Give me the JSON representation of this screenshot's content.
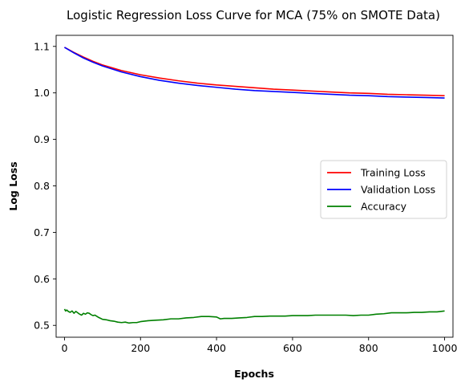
{
  "chart_data": {
    "type": "line",
    "title": "Logistic Regression Loss Curve for MCA (75% on SMOTE Data)",
    "xlabel": "Epochs",
    "ylabel": "Log Loss",
    "xlim": [
      -22,
      1022
    ],
    "ylim": [
      0.4745,
      1.1238
    ],
    "xticks": [
      0,
      200,
      400,
      600,
      800,
      1000
    ],
    "yticks": [
      0.5,
      0.6,
      0.7,
      0.8,
      0.9,
      1.0,
      1.1
    ],
    "ytick_labels": [
      "0.5",
      "0.6",
      "0.7",
      "0.8",
      "0.9",
      "1.0",
      "1.1"
    ],
    "grid": false,
    "legend_position": "center-right",
    "series": [
      {
        "name": "Training Loss",
        "color": "#ff0000",
        "x": [
          0,
          25,
          50,
          75,
          100,
          150,
          200,
          250,
          300,
          350,
          400,
          450,
          500,
          550,
          600,
          650,
          700,
          750,
          800,
          850,
          900,
          950,
          1000
        ],
        "y": [
          1.098,
          1.087,
          1.077,
          1.068,
          1.06,
          1.048,
          1.039,
          1.032,
          1.026,
          1.021,
          1.017,
          1.014,
          1.011,
          1.008,
          1.006,
          1.004,
          1.002,
          1.0,
          0.999,
          0.997,
          0.996,
          0.995,
          0.994
        ]
      },
      {
        "name": "Validation Loss",
        "color": "#0000ff",
        "x": [
          0,
          25,
          50,
          75,
          100,
          150,
          200,
          250,
          300,
          350,
          400,
          450,
          500,
          550,
          600,
          650,
          700,
          750,
          800,
          850,
          900,
          950,
          1000
        ],
        "y": [
          1.098,
          1.086,
          1.075,
          1.066,
          1.058,
          1.045,
          1.035,
          1.027,
          1.021,
          1.016,
          1.012,
          1.008,
          1.005,
          1.003,
          1.001,
          0.999,
          0.997,
          0.995,
          0.994,
          0.992,
          0.991,
          0.99,
          0.989
        ]
      },
      {
        "name": "Accuracy",
        "color": "#008000",
        "x": [
          0,
          3,
          6,
          10,
          15,
          20,
          25,
          30,
          35,
          40,
          45,
          50,
          55,
          60,
          65,
          70,
          75,
          80,
          90,
          100,
          110,
          120,
          130,
          140,
          150,
          160,
          170,
          180,
          190,
          200,
          220,
          240,
          260,
          280,
          300,
          320,
          340,
          360,
          380,
          400,
          410,
          420,
          440,
          460,
          480,
          500,
          520,
          540,
          560,
          580,
          600,
          620,
          640,
          660,
          680,
          700,
          720,
          740,
          760,
          780,
          800,
          820,
          840,
          860,
          880,
          900,
          920,
          940,
          960,
          980,
          1000
        ],
        "y": [
          0.535,
          0.531,
          0.533,
          0.53,
          0.528,
          0.531,
          0.526,
          0.53,
          0.527,
          0.524,
          0.522,
          0.526,
          0.524,
          0.527,
          0.526,
          0.523,
          0.521,
          0.522,
          0.517,
          0.513,
          0.512,
          0.51,
          0.509,
          0.507,
          0.506,
          0.507,
          0.505,
          0.506,
          0.506,
          0.508,
          0.51,
          0.511,
          0.512,
          0.514,
          0.514,
          0.516,
          0.517,
          0.519,
          0.519,
          0.518,
          0.514,
          0.515,
          0.515,
          0.516,
          0.517,
          0.519,
          0.519,
          0.52,
          0.52,
          0.52,
          0.521,
          0.521,
          0.521,
          0.522,
          0.522,
          0.522,
          0.522,
          0.522,
          0.521,
          0.522,
          0.522,
          0.524,
          0.525,
          0.527,
          0.527,
          0.527,
          0.528,
          0.528,
          0.529,
          0.529,
          0.531
        ]
      }
    ]
  }
}
